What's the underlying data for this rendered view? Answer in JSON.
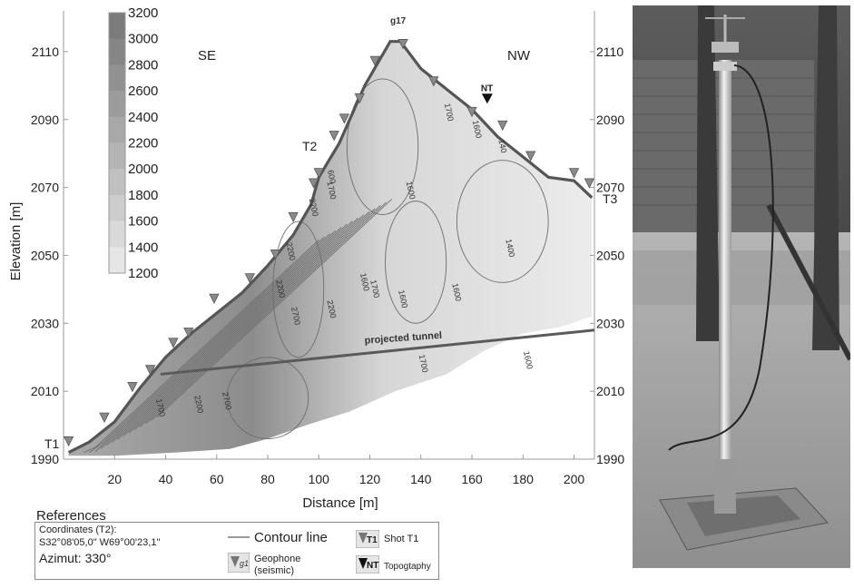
{
  "chart_data": {
    "type": "heatmap",
    "xlabel": "Distance [m]",
    "ylabel": "Elevation [m]",
    "xlim": [
      0,
      208
    ],
    "ylim": [
      1990,
      2122
    ],
    "x_ticks": [
      "20",
      "40",
      "60",
      "80",
      "100",
      "120",
      "140",
      "160",
      "180",
      "200"
    ],
    "x_tick_values": [
      20,
      40,
      60,
      80,
      100,
      120,
      140,
      160,
      180,
      200
    ],
    "y_ticks": [
      "2110",
      "2090",
      "2070",
      "2050",
      "2030",
      "2010",
      "1990"
    ],
    "y_tick_values": [
      2110,
      2090,
      2070,
      2050,
      2030,
      2010,
      1990
    ],
    "colorbar": {
      "labels": [
        "3200",
        "3000",
        "2800",
        "2600",
        "2400",
        "2200",
        "2000",
        "1800",
        "1600",
        "1400",
        "1200"
      ],
      "values": [
        3200,
        3000,
        2800,
        2600,
        2400,
        2200,
        2000,
        1800,
        1600,
        1400,
        1200
      ],
      "colors": [
        "#7b7b7b",
        "#868686",
        "#919191",
        "#9c9c9c",
        "#a8a8a8",
        "#b4b4b4",
        "#c0c0c0",
        "#cccccc",
        "#d9d9d9",
        "#e6e6e6",
        "#f4f4f4"
      ]
    },
    "topography": {
      "x": [
        2,
        10,
        20,
        30,
        40,
        50,
        60,
        70,
        80,
        90,
        97,
        100,
        108,
        118,
        128,
        132,
        140,
        150,
        160,
        170,
        180,
        190,
        200,
        207
      ],
      "y": [
        1992,
        1995,
        2001,
        2011,
        2020,
        2027,
        2033,
        2039,
        2047,
        2056,
        2065,
        2073,
        2083,
        2100,
        2113,
        2113,
        2105,
        2099,
        2093,
        2085,
        2079,
        2073,
        2072,
        2067
      ]
    },
    "geophones": {
      "x": [
        2,
        16,
        27,
        34,
        43,
        49,
        59,
        73,
        83,
        90,
        98,
        100,
        106,
        110,
        116,
        122,
        133,
        145,
        160,
        172,
        183,
        200,
        206
      ],
      "y": [
        1995,
        2002,
        2011,
        2016,
        2024,
        2027,
        2037,
        2043,
        2050,
        2061,
        2071,
        2074,
        2085,
        2090,
        2096,
        2107,
        2112,
        2101,
        2092,
        2088,
        2079,
        2074,
        2071
      ]
    },
    "nt_marker": {
      "x": 166,
      "y": 2096,
      "label": "NT"
    },
    "contour_labels": [
      {
        "text": "1700",
        "x": 150,
        "y": 2092
      },
      {
        "text": "1600",
        "x": 161,
        "y": 2087
      },
      {
        "text": "140",
        "x": 171,
        "y": 2082
      },
      {
        "text": "1600",
        "x": 135,
        "y": 2069
      },
      {
        "text": "1400",
        "x": 174,
        "y": 2052
      },
      {
        "text": "600",
        "x": 104,
        "y": 2073
      },
      {
        "text": "1700",
        "x": 104,
        "y": 2069
      },
      {
        "text": "2200",
        "x": 97,
        "y": 2064
      },
      {
        "text": "2200",
        "x": 88,
        "y": 2051
      },
      {
        "text": "1600",
        "x": 117,
        "y": 2042
      },
      {
        "text": "1700",
        "x": 121,
        "y": 2040
      },
      {
        "text": "2200",
        "x": 104,
        "y": 2034
      },
      {
        "text": "2700",
        "x": 90,
        "y": 2032
      },
      {
        "text": "2200",
        "x": 84,
        "y": 2040
      },
      {
        "text": "1600",
        "x": 132,
        "y": 2037
      },
      {
        "text": "1600",
        "x": 153,
        "y": 2039
      },
      {
        "text": "1700",
        "x": 140,
        "y": 2018
      },
      {
        "text": "1600",
        "x": 181,
        "y": 2019
      },
      {
        "text": "1700",
        "x": 37,
        "y": 2005
      },
      {
        "text": "2200",
        "x": 52,
        "y": 2006
      },
      {
        "text": "2700",
        "x": 63,
        "y": 2007
      }
    ],
    "tunnel": {
      "x": [
        38,
        208
      ],
      "y": [
        2015,
        2028
      ],
      "label": "projected tunnel"
    },
    "annotations": {
      "se": "SE",
      "nw": "NW",
      "t1": "T1",
      "t2": "T2",
      "t3": "T3",
      "g17": "g17"
    }
  },
  "references": {
    "title": "References",
    "coordinates_label": "Coordinates (T2):",
    "coordinates_value": "S32°08'05,0\" W69°00'23,1\"",
    "azimut": "Azimut: 330°",
    "contour_line": "Contour line",
    "geophone": "Geophone",
    "geophone_sub": "(seismic)",
    "geophone_icon": "g1",
    "shot": "Shot T1",
    "shot_icon": "T1",
    "topography": "Topogtaphy",
    "topography_icon": "NT"
  }
}
